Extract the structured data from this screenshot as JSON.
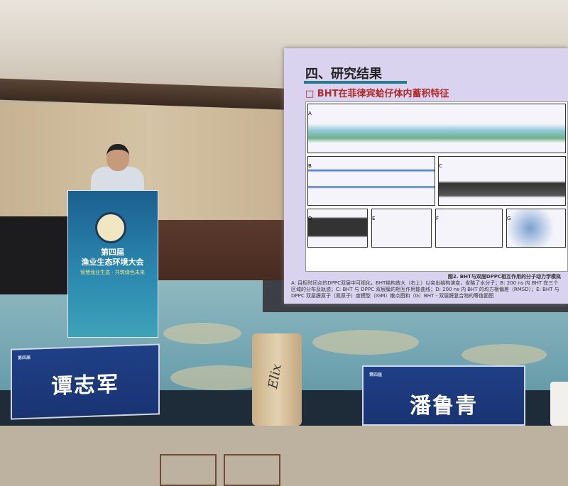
{
  "podium": {
    "edition": "第四届",
    "conference_name": "渔业生态环境大会",
    "slogan": "智慧渔业生态 · 共筑绿色未来"
  },
  "slide": {
    "section_title": "四、研究结果",
    "subtitle": "□ BHT在菲律宾蛤仔体内蓄积特征",
    "panel_labels": [
      "A",
      "B",
      "C",
      "D",
      "E",
      "F",
      "G"
    ],
    "figure_caption": "图2. BHT与双层DPPC相互作用的分子动力学模拟",
    "caption_text": "A: 目标时间点的DPPC双层中可视化，BHT结构放大（右上）以突出结构演变，省略了水分子；B: 200 ns 内 BHT 在三个区域的分布及轨迹；C: BHT 与 DPPC 双层膜的相互作用能曲线；D: 200 ns 内 BHT 的均方根偏差（RMSD）；E: BHT 与 DPPC 双层膜原子（氮原子）度模型（IGM）散点图和（G）BHT - 双层膜复合物的等值面图"
  },
  "name_cards": [
    "谭志军",
    "潘鲁青"
  ],
  "cup_brand": "Elix",
  "colors": {
    "slide_title_red": "#b02a2a",
    "podium_blue": "#1b5f8f",
    "card_blue": "#1f3f86"
  }
}
